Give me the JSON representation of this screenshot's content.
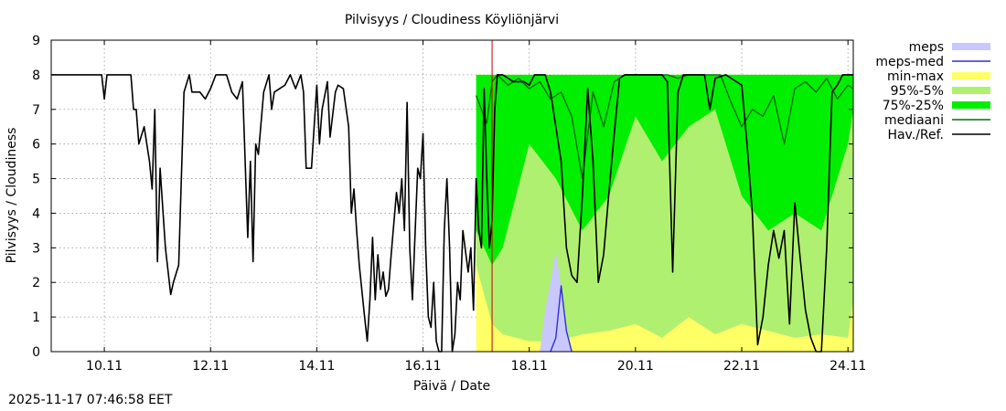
{
  "timestamp": "2025-11-17 07:46:58 EET",
  "chart_data": {
    "type": "line",
    "title": "Pilvisyys / Cloudiness Köyliönjärvi",
    "xlabel": "Päivä / Date",
    "ylabel": "Pilvisyys / Cloudiness",
    "xlim": [
      9.0,
      24.1
    ],
    "ylim": [
      0,
      9
    ],
    "x_unit": "days (November)",
    "xticks": [
      10,
      12,
      14,
      16,
      18,
      20,
      22,
      24
    ],
    "xtick_labels": [
      "10.11",
      "12.11",
      "14.11",
      "16.11",
      "18.11",
      "20.11",
      "22.11",
      "24.11"
    ],
    "yticks": [
      0,
      1,
      2,
      3,
      4,
      5,
      6,
      7,
      8,
      9
    ],
    "ytick_labels": [
      "0",
      "1",
      "2",
      "3",
      "4",
      "5",
      "6",
      "7",
      "8",
      "9"
    ],
    "grid": true,
    "legend_position": "right",
    "now_marker_x": 17.3,
    "legend": [
      {
        "label": "meps",
        "color": "#c8c8ff",
        "kind": "box"
      },
      {
        "label": "meps-med",
        "color": "#3030d0",
        "kind": "line"
      },
      {
        "label": "min-max",
        "color": "#ffff66",
        "kind": "box"
      },
      {
        "label": "95%-5%",
        "color": "#b0f070",
        "kind": "box"
      },
      {
        "label": "75%-25%",
        "color": "#00ee00",
        "kind": "box"
      },
      {
        "label": "mediaani",
        "color": "#007000",
        "kind": "line"
      },
      {
        "label": "Hav./Ref.",
        "color": "#000000",
        "kind": "line"
      }
    ],
    "series": [
      {
        "name": "Hav./Ref.",
        "color": "#000000",
        "points": [
          [
            9.0,
            8
          ],
          [
            9.95,
            8
          ],
          [
            10.0,
            7.3
          ],
          [
            10.05,
            8
          ],
          [
            10.5,
            8
          ],
          [
            10.55,
            7
          ],
          [
            10.6,
            7
          ],
          [
            10.65,
            6
          ],
          [
            10.75,
            6.5
          ],
          [
            10.85,
            5.5
          ],
          [
            10.9,
            4.7
          ],
          [
            10.95,
            7
          ],
          [
            11.0,
            2.6
          ],
          [
            11.05,
            5.3
          ],
          [
            11.15,
            3
          ],
          [
            11.25,
            1.65
          ],
          [
            11.3,
            2
          ],
          [
            11.4,
            2.5
          ],
          [
            11.5,
            7.5
          ],
          [
            11.6,
            8
          ],
          [
            11.65,
            7.5
          ],
          [
            11.8,
            7.5
          ],
          [
            11.9,
            7.3
          ],
          [
            12.0,
            7.6
          ],
          [
            12.1,
            8
          ],
          [
            12.3,
            8
          ],
          [
            12.4,
            7.5
          ],
          [
            12.5,
            7.3
          ],
          [
            12.6,
            7.8
          ],
          [
            12.7,
            3.3
          ],
          [
            12.75,
            5.5
          ],
          [
            12.8,
            2.6
          ],
          [
            12.85,
            6
          ],
          [
            12.9,
            5.7
          ],
          [
            13.0,
            7.5
          ],
          [
            13.1,
            8
          ],
          [
            13.15,
            7
          ],
          [
            13.2,
            7.5
          ],
          [
            13.3,
            7.6
          ],
          [
            13.4,
            7.7
          ],
          [
            13.5,
            8
          ],
          [
            13.6,
            7.6
          ],
          [
            13.7,
            8
          ],
          [
            13.75,
            7.5
          ],
          [
            13.8,
            5.3
          ],
          [
            13.9,
            5.3
          ],
          [
            14.0,
            7.7
          ],
          [
            14.05,
            6
          ],
          [
            14.1,
            7
          ],
          [
            14.2,
            7.8
          ],
          [
            14.25,
            6.2
          ],
          [
            14.35,
            7.5
          ],
          [
            14.4,
            7.7
          ],
          [
            14.5,
            7.6
          ],
          [
            14.6,
            6.5
          ],
          [
            14.65,
            4
          ],
          [
            14.7,
            4.7
          ],
          [
            14.75,
            3.5
          ],
          [
            14.8,
            2.5
          ],
          [
            14.9,
            1
          ],
          [
            14.95,
            0.3
          ],
          [
            15.0,
            1.5
          ],
          [
            15.05,
            3.3
          ],
          [
            15.1,
            1.5
          ],
          [
            15.15,
            2.8
          ],
          [
            15.2,
            1.8
          ],
          [
            15.25,
            2.3
          ],
          [
            15.3,
            1.6
          ],
          [
            15.35,
            1.8
          ],
          [
            15.4,
            2.8
          ],
          [
            15.5,
            4.6
          ],
          [
            15.55,
            4
          ],
          [
            15.6,
            5
          ],
          [
            15.65,
            3.5
          ],
          [
            15.7,
            7.2
          ],
          [
            15.75,
            3
          ],
          [
            15.8,
            1.5
          ],
          [
            15.9,
            5.3
          ],
          [
            15.95,
            5
          ],
          [
            16.0,
            6.3
          ],
          [
            16.05,
            3
          ],
          [
            16.1,
            1
          ],
          [
            16.15,
            0.7
          ],
          [
            16.2,
            2
          ],
          [
            16.25,
            0.3
          ],
          [
            16.3,
            0
          ],
          [
            16.35,
            0
          ],
          [
            16.4,
            3.5
          ],
          [
            16.45,
            5
          ],
          [
            16.5,
            3
          ],
          [
            16.55,
            0
          ],
          [
            16.6,
            0.5
          ],
          [
            16.65,
            2
          ],
          [
            16.7,
            1.5
          ],
          [
            16.75,
            3.5
          ],
          [
            16.85,
            2.3
          ],
          [
            16.9,
            3
          ],
          [
            16.95,
            1.2
          ],
          [
            17.0,
            5
          ],
          [
            17.05,
            3.5
          ],
          [
            17.1,
            3
          ],
          [
            17.15,
            7.6
          ],
          [
            17.2,
            5
          ],
          [
            17.25,
            3
          ],
          [
            17.3,
            3.8
          ],
          [
            17.35,
            7
          ],
          [
            17.4,
            8
          ],
          [
            17.5,
            8
          ],
          [
            17.7,
            7.8
          ],
          [
            17.9,
            7.8
          ],
          [
            18.0,
            7.7
          ],
          [
            18.1,
            8
          ],
          [
            18.2,
            8
          ],
          [
            18.3,
            8
          ],
          [
            18.4,
            7.5
          ],
          [
            18.5,
            6.5
          ],
          [
            18.6,
            5.5
          ],
          [
            18.7,
            3
          ],
          [
            18.8,
            2.2
          ],
          [
            18.9,
            2
          ],
          [
            19.0,
            4.5
          ],
          [
            19.1,
            7.6
          ],
          [
            19.2,
            5.5
          ],
          [
            19.3,
            2
          ],
          [
            19.4,
            2.8
          ],
          [
            19.5,
            4.6
          ],
          [
            19.6,
            6.3
          ],
          [
            19.7,
            7.9
          ],
          [
            19.8,
            8
          ],
          [
            20.5,
            8
          ],
          [
            20.6,
            7.8
          ],
          [
            20.7,
            2.3
          ],
          [
            20.8,
            7.5
          ],
          [
            20.9,
            8
          ],
          [
            21.3,
            8
          ],
          [
            21.4,
            7
          ],
          [
            21.5,
            7.9
          ],
          [
            21.7,
            8
          ],
          [
            22.0,
            7.7
          ],
          [
            22.1,
            6
          ],
          [
            22.2,
            4
          ],
          [
            22.3,
            0.2
          ],
          [
            22.4,
            1
          ],
          [
            22.5,
            2.5
          ],
          [
            22.6,
            3.5
          ],
          [
            22.7,
            2.7
          ],
          [
            22.8,
            3.5
          ],
          [
            22.9,
            0.8
          ],
          [
            23.0,
            4.3
          ],
          [
            23.1,
            2.7
          ],
          [
            23.2,
            1.2
          ],
          [
            23.3,
            0.4
          ],
          [
            23.4,
            0
          ],
          [
            23.5,
            0
          ],
          [
            23.6,
            3
          ],
          [
            23.7,
            7.5
          ],
          [
            23.8,
            7.7
          ],
          [
            23.9,
            8
          ],
          [
            24.1,
            8
          ]
        ]
      },
      {
        "name": "mediaani",
        "color": "#007000",
        "points": [
          [
            17.0,
            7.4
          ],
          [
            17.2,
            6.6
          ],
          [
            17.3,
            7.8
          ],
          [
            17.4,
            8
          ],
          [
            17.6,
            7.7
          ],
          [
            17.8,
            7.9
          ],
          [
            18.0,
            7.6
          ],
          [
            18.2,
            7.8
          ],
          [
            18.4,
            7.3
          ],
          [
            18.6,
            7.5
          ],
          [
            18.8,
            6.8
          ],
          [
            19.0,
            5
          ],
          [
            19.2,
            7.5
          ],
          [
            19.4,
            6.5
          ],
          [
            19.6,
            7.8
          ],
          [
            19.8,
            8
          ],
          [
            20.6,
            8
          ],
          [
            20.8,
            7.9
          ],
          [
            21.0,
            8
          ],
          [
            21.6,
            8
          ],
          [
            21.8,
            7.2
          ],
          [
            22.0,
            6.5
          ],
          [
            22.2,
            7
          ],
          [
            22.4,
            6.8
          ],
          [
            22.6,
            7.4
          ],
          [
            22.8,
            6
          ],
          [
            23.0,
            7.6
          ],
          [
            23.2,
            7.8
          ],
          [
            23.4,
            7.5
          ],
          [
            23.6,
            7.9
          ],
          [
            23.8,
            7.3
          ],
          [
            24.0,
            7.7
          ],
          [
            24.1,
            7.6
          ]
        ]
      },
      {
        "name": "meps",
        "color": "#c8c8ff",
        "points": [
          [
            18.2,
            0
          ],
          [
            18.3,
            1.2
          ],
          [
            18.4,
            2
          ],
          [
            18.5,
            2.9
          ],
          [
            18.6,
            1.9
          ],
          [
            18.7,
            0.8
          ],
          [
            18.8,
            0
          ]
        ]
      },
      {
        "name": "meps-med",
        "color": "#3030d0",
        "points": [
          [
            18.4,
            0
          ],
          [
            18.5,
            0.4
          ],
          [
            18.6,
            1.9
          ],
          [
            18.7,
            0.6
          ],
          [
            18.8,
            0
          ]
        ]
      }
    ],
    "bands": [
      {
        "name": "min-max",
        "color": "#ffff66",
        "x": [
          17.0,
          17.3,
          17.5,
          18.0,
          18.5,
          19.0,
          19.5,
          20.0,
          20.5,
          21.0,
          21.5,
          22.0,
          22.5,
          23.0,
          23.5,
          24.0,
          24.1
        ],
        "low": [
          0,
          0,
          0,
          0,
          0,
          0,
          0,
          0,
          0,
          0,
          0,
          0,
          0,
          0,
          0,
          0,
          0
        ],
        "high": [
          8,
          8,
          8,
          8,
          8,
          8,
          8,
          8,
          8,
          8,
          8,
          8,
          8,
          8,
          8,
          8,
          8
        ]
      },
      {
        "name": "95%-5%",
        "color": "#b0f070",
        "x": [
          17.0,
          17.3,
          17.5,
          18.0,
          18.5,
          19.0,
          19.5,
          20.0,
          20.5,
          21.0,
          21.5,
          22.0,
          22.5,
          23.0,
          23.5,
          24.0,
          24.1
        ],
        "low": [
          2.5,
          0.8,
          0.5,
          0.3,
          0.3,
          0.5,
          0.6,
          0.8,
          0.4,
          1.0,
          0.5,
          0.8,
          0.6,
          0.4,
          0.5,
          0.4,
          1.5
        ],
        "high": [
          8,
          8,
          8,
          8,
          8,
          8,
          8,
          8,
          8,
          8,
          8,
          8,
          8,
          8,
          8,
          8,
          8
        ]
      },
      {
        "name": "75%-25%",
        "color": "#00ee00",
        "x": [
          17.0,
          17.3,
          17.5,
          18.0,
          18.5,
          19.0,
          19.5,
          20.0,
          20.5,
          21.0,
          21.5,
          22.0,
          22.5,
          23.0,
          23.5,
          24.0,
          24.1
        ],
        "low": [
          3.5,
          2.5,
          3.0,
          6.0,
          5.0,
          3.5,
          4.5,
          6.8,
          5.5,
          6.5,
          7.0,
          4.5,
          3.5,
          4.0,
          3.5,
          6.0,
          7.0
        ],
        "high": [
          8,
          8,
          8,
          8,
          8,
          8,
          8,
          8,
          8,
          8,
          8,
          8,
          8,
          8,
          8,
          8,
          8
        ]
      }
    ]
  }
}
